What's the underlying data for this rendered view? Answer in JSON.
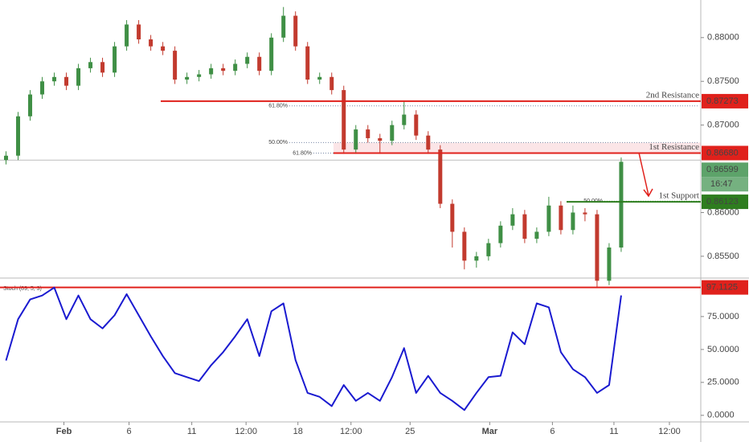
{
  "chart_data": {
    "type": "candlestick",
    "x": [
      0,
      1,
      2,
      3,
      4,
      5,
      6,
      7,
      8,
      9,
      10,
      11,
      12,
      13,
      14,
      15,
      16,
      17,
      18,
      19,
      20,
      21,
      22,
      23,
      24,
      25,
      26,
      27,
      28,
      29,
      30,
      31,
      32,
      33,
      34,
      35,
      36,
      37,
      38,
      39,
      40,
      41,
      42,
      43,
      44,
      45,
      46,
      47,
      48,
      49,
      50,
      51
    ],
    "open": [
      0.866,
      0.8665,
      0.871,
      0.8735,
      0.875,
      0.8755,
      0.8745,
      0.8765,
      0.8772,
      0.876,
      0.879,
      0.8815,
      0.8798,
      0.879,
      0.8785,
      0.8752,
      0.8755,
      0.8758,
      0.8765,
      0.8762,
      0.877,
      0.8778,
      0.8762,
      0.88,
      0.8825,
      0.879,
      0.8752,
      0.8755,
      0.874,
      0.8672,
      0.8695,
      0.8685,
      0.8682,
      0.87,
      0.8712,
      0.8688,
      0.8672,
      0.861,
      0.8578,
      0.8545,
      0.855,
      0.8565,
      0.8585,
      0.8598,
      0.857,
      0.8578,
      0.8608,
      0.858,
      0.86,
      0.8598,
      0.8522,
      0.856
    ],
    "high": [
      0.867,
      0.8715,
      0.874,
      0.8755,
      0.876,
      0.876,
      0.877,
      0.8777,
      0.8777,
      0.8795,
      0.882,
      0.882,
      0.8803,
      0.8795,
      0.879,
      0.876,
      0.8763,
      0.877,
      0.877,
      0.8775,
      0.8783,
      0.8783,
      0.8805,
      0.8835,
      0.883,
      0.8795,
      0.876,
      0.876,
      0.8745,
      0.87,
      0.87,
      0.869,
      0.8705,
      0.8727,
      0.8717,
      0.8693,
      0.8677,
      0.8615,
      0.8583,
      0.8555,
      0.857,
      0.859,
      0.8605,
      0.8603,
      0.8583,
      0.8618,
      0.8613,
      0.8608,
      0.8605,
      0.8603,
      0.8565,
      0.8663
    ],
    "low": [
      0.8655,
      0.866,
      0.8705,
      0.873,
      0.8745,
      0.874,
      0.874,
      0.876,
      0.8755,
      0.8755,
      0.8785,
      0.8793,
      0.8785,
      0.878,
      0.8747,
      0.8747,
      0.875,
      0.8753,
      0.8757,
      0.8757,
      0.8765,
      0.8757,
      0.8757,
      0.8795,
      0.8785,
      0.8747,
      0.8747,
      0.8735,
      0.8667,
      0.8667,
      0.868,
      0.8667,
      0.8677,
      0.8695,
      0.8683,
      0.8667,
      0.8605,
      0.856,
      0.8535,
      0.8537,
      0.8545,
      0.856,
      0.858,
      0.8565,
      0.8565,
      0.8573,
      0.8575,
      0.8575,
      0.859,
      0.8515,
      0.8517,
      0.8555
    ],
    "close": [
      0.8665,
      0.871,
      0.8735,
      0.875,
      0.8755,
      0.8745,
      0.8765,
      0.8772,
      0.876,
      0.879,
      0.8815,
      0.8798,
      0.879,
      0.8785,
      0.8752,
      0.8755,
      0.8758,
      0.8765,
      0.8762,
      0.877,
      0.8778,
      0.8762,
      0.88,
      0.8825,
      0.879,
      0.8752,
      0.8755,
      0.874,
      0.8672,
      0.8695,
      0.8685,
      0.8682,
      0.87,
      0.8712,
      0.8688,
      0.8672,
      0.861,
      0.8578,
      0.8545,
      0.855,
      0.8565,
      0.8585,
      0.8598,
      0.857,
      0.8578,
      0.8608,
      0.858,
      0.86,
      0.8598,
      0.8522,
      0.856,
      0.8658
    ],
    "up_color": "#3f8f45",
    "down_color": "#c23a2e",
    "xlim": [
      -0.5,
      57.6
    ],
    "xticks": [
      {
        "value": 4.8,
        "label": "Feb"
      },
      {
        "value": 10.2,
        "label": "6"
      },
      {
        "value": 15.4,
        "label": "11"
      },
      {
        "value": 19.9,
        "label": "12:00"
      },
      {
        "value": 24.2,
        "label": "18"
      },
      {
        "value": 28.6,
        "label": "12:00"
      },
      {
        "value": 33.5,
        "label": "25"
      },
      {
        "value": 40.1,
        "label": "Mar"
      },
      {
        "value": 45.3,
        "label": "6"
      },
      {
        "value": 50.4,
        "label": "11"
      },
      {
        "value": 55.0,
        "label": "12:00"
      }
    ],
    "ylim": [
      0.8526,
      0.8843
    ],
    "yticks": [
      {
        "value": 0.855,
        "label": "0.85500"
      },
      {
        "value": 0.86,
        "label": "0.86000"
      },
      {
        "value": 0.87,
        "label": "0.87000"
      },
      {
        "value": 0.875,
        "label": "0.87500"
      },
      {
        "value": 0.88,
        "label": "0.88000"
      }
    ],
    "levels": [
      {
        "label": "2nd Resistance",
        "value": 0.87273,
        "value_label": "0.87273",
        "color": "#e0211c"
      },
      {
        "label": "1st Resistance",
        "value": 0.8668,
        "value_label": "0.86680",
        "color": "#e0211c"
      },
      {
        "label": "1st Support",
        "value": 0.86123,
        "value_label": "0.86123",
        "color": "#2e7d1f"
      }
    ],
    "fib_levels": [
      {
        "label": "61.80%",
        "value": 0.8722
      },
      {
        "label": "50.00%",
        "value": 0.868
      },
      {
        "label": "61.80%",
        "value": 0.8668
      },
      {
        "label": "50.00%",
        "value": 0.8613
      }
    ],
    "current_price": {
      "value": 0.86599,
      "label": "0.86599",
      "color": "#5da36a"
    },
    "countdown": "16:47",
    "indicator": {
      "name": "Stoch (89, 5, 3)",
      "color": "#1a1ad0",
      "values": [
        41.6,
        73,
        88,
        91,
        97,
        73,
        91,
        73,
        66,
        76,
        92,
        76,
        60,
        45,
        32,
        29,
        26,
        38,
        48,
        60,
        73,
        45,
        79,
        85,
        42,
        17,
        14,
        7,
        23,
        11,
        17,
        11,
        29,
        51,
        17,
        30,
        17,
        11,
        4,
        17,
        29,
        30,
        63,
        54,
        85,
        82,
        48,
        35,
        29,
        17,
        23,
        91
      ],
      "level": {
        "value": 97.1125,
        "label": "97.1125",
        "color": "#e0211c"
      },
      "y2lim": [
        -5,
        103
      ],
      "y2ticks": [
        {
          "value": 0,
          "label": "0.0000"
        },
        {
          "value": 25,
          "label": "25.0000"
        },
        {
          "value": 50,
          "label": "50.0000"
        },
        {
          "value": 75,
          "label": "75.0000"
        }
      ]
    }
  }
}
